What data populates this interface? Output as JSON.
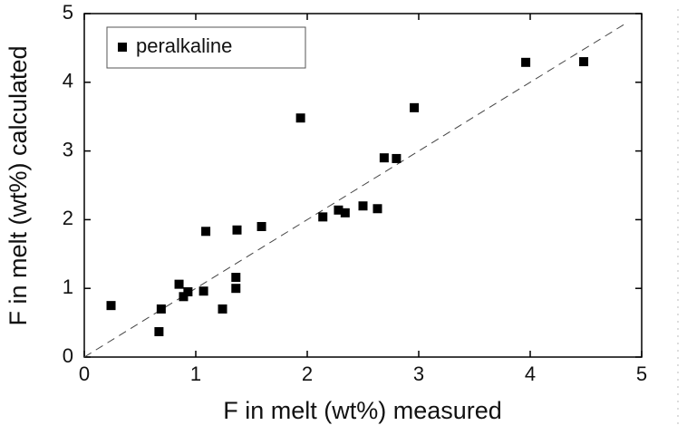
{
  "chart_data": {
    "type": "scatter",
    "xlabel": "F in melt (wt%) measured",
    "ylabel": "F in melt (wt%) calculated",
    "xlim": [
      0,
      5
    ],
    "ylim": [
      0,
      5
    ],
    "xticks": [
      0,
      1,
      2,
      3,
      4,
      5
    ],
    "yticks": [
      0,
      1,
      2,
      3,
      4,
      5
    ],
    "legend": "upper left",
    "series": [
      {
        "name": "peralkaline",
        "color": "#000000",
        "x": [
          0.24,
          0.69,
          0.67,
          0.85,
          0.89,
          0.93,
          1.07,
          1.09,
          1.24,
          1.36,
          1.36,
          1.37,
          1.59,
          1.94,
          2.14,
          2.28,
          2.34,
          2.5,
          2.63,
          2.69,
          2.8,
          2.96,
          3.96,
          4.48
        ],
        "values": [
          0.75,
          0.7,
          0.37,
          1.06,
          0.88,
          0.95,
          0.96,
          1.83,
          0.7,
          1.16,
          1.0,
          1.85,
          1.9,
          3.48,
          2.04,
          2.14,
          2.1,
          2.2,
          2.16,
          2.9,
          2.89,
          3.63,
          4.29,
          4.3
        ]
      }
    ]
  }
}
